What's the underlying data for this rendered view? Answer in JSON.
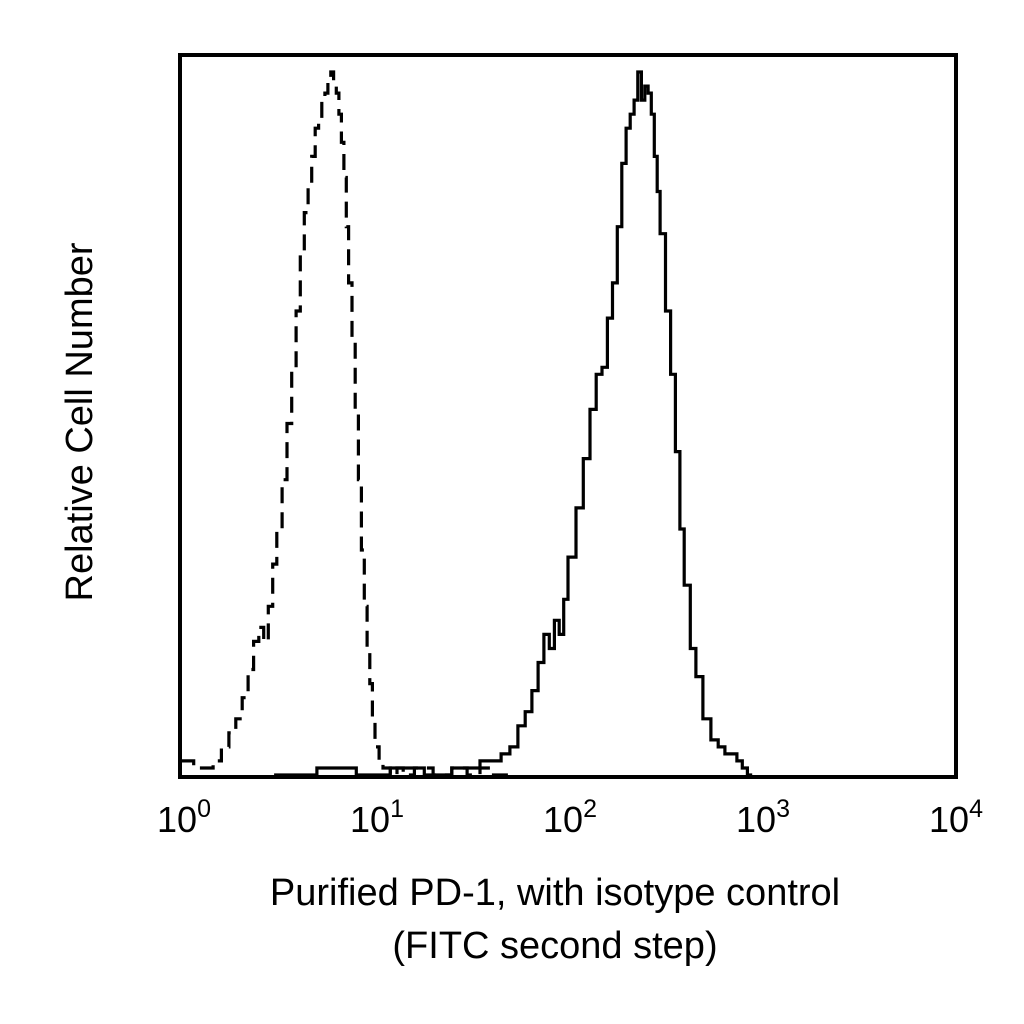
{
  "chart_data": {
    "type": "line",
    "title": "",
    "xlabel": "Purified PD-1, with isotype control",
    "xlabel_line2": "(FITC second step)",
    "ylabel": "Relative Cell Number",
    "x_scale": "log",
    "xlim": [
      1,
      10000
    ],
    "ylim": [
      0,
      100
    ],
    "y_ticks": "none",
    "grid": false,
    "legend": "none",
    "x_ticks": [
      {
        "base": "10",
        "exp": "0",
        "value": 1
      },
      {
        "base": "10",
        "exp": "1",
        "value": 10
      },
      {
        "base": "10",
        "exp": "2",
        "value": 100
      },
      {
        "base": "10",
        "exp": "3",
        "value": 1000
      },
      {
        "base": "10",
        "exp": "4",
        "value": 10000
      }
    ],
    "series": [
      {
        "style": "dashed",
        "color": "#000000",
        "x": [
          1.0,
          1.15,
          1.3,
          1.45,
          1.6,
          1.75,
          1.9,
          2.05,
          2.2,
          2.35,
          2.5,
          2.65,
          2.8,
          2.95,
          3.1,
          3.3,
          3.5,
          3.7,
          3.9,
          4.1,
          4.3,
          4.5,
          4.7,
          4.9,
          5.1,
          5.3,
          5.5,
          5.7,
          5.9,
          6.1,
          6.3,
          6.5,
          6.7,
          6.9,
          7.1,
          7.3,
          7.6,
          7.9,
          8.2,
          8.5,
          8.8,
          9.1,
          9.4,
          9.7,
          10.0,
          10.5,
          11.0,
          11.5,
          12.0,
          13.0,
          14.0,
          16.0,
          20.0,
          25.0,
          30.0,
          35.0,
          40.0,
          50.0
        ],
        "y": [
          2,
          1,
          1,
          2,
          4,
          6,
          8,
          11,
          15,
          19,
          21,
          19,
          24,
          30,
          35,
          42,
          50,
          58,
          66,
          74,
          80,
          84,
          88,
          92,
          93,
          96,
          97,
          99,
          100,
          98,
          97,
          94,
          90,
          85,
          78,
          70,
          62,
          52,
          42,
          32,
          24,
          18,
          13,
          8,
          4,
          2,
          1,
          1,
          0,
          1,
          0,
          1,
          0,
          1,
          0,
          1,
          0,
          0
        ]
      },
      {
        "style": "solid",
        "color": "#000000",
        "x": [
          3.0,
          5.0,
          8.0,
          12.0,
          18.0,
          25.0,
          35.0,
          45.0,
          50.0,
          55.0,
          60.0,
          65.0,
          70.0,
          75.0,
          80.0,
          85.0,
          90.0,
          95.0,
          100.0,
          110.0,
          120.0,
          130.0,
          140.0,
          150.0,
          160.0,
          170.0,
          180.0,
          190.0,
          200.0,
          210.0,
          220.0,
          230.0,
          240.0,
          250.0,
          260.0,
          270.0,
          280.0,
          290.0,
          300.0,
          320.0,
          340.0,
          360.0,
          380.0,
          400.0,
          430.0,
          460.0,
          500.0,
          550.0,
          600.0,
          650.0,
          700.0,
          750.0,
          800.0,
          850.0,
          900.0
        ],
        "y": [
          0,
          1,
          0,
          1,
          0,
          1,
          2,
          3,
          4,
          7,
          9,
          12,
          16,
          20,
          18,
          22,
          20,
          25,
          31,
          38,
          45,
          52,
          57,
          58,
          65,
          70,
          78,
          87,
          92,
          94,
          96,
          100,
          96,
          98,
          97,
          94,
          88,
          83,
          77,
          66,
          57,
          46,
          35,
          27,
          18,
          14,
          8,
          5,
          4,
          3,
          3,
          2,
          1,
          0,
          0
        ]
      }
    ]
  }
}
